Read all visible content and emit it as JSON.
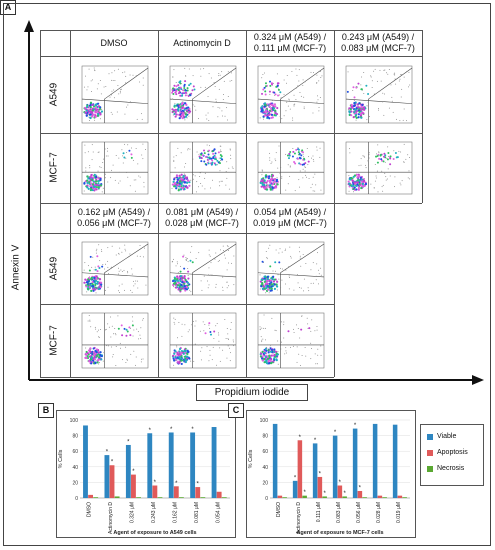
{
  "panel_a": {
    "label": "A",
    "top_headers": [
      "DMSO",
      "Actinomycin D",
      "0.324 μM (A549) / 0.111 μM (MCF-7)",
      "0.243 μM (A549) / 0.083 μM (MCF-7)"
    ],
    "bottom_headers": [
      "0.162 μM (A549) / 0.056 μM (MCF-7)",
      "0.081 μM (A549) / 0.028 μM (MCF-7)",
      "0.054 μM (A549) / 0.019 μM (MCF-7)"
    ],
    "row_labels": [
      "A549",
      "MCF-7",
      "A549",
      "MCF-7"
    ],
    "y_axis_label": "Annexin V",
    "x_axis_label": "Propidium iodide"
  },
  "legend": {
    "items": [
      {
        "label": "Viable",
        "color": "#2e86c1"
      },
      {
        "label": "Apoptosis",
        "color": "#e05a5a"
      },
      {
        "label": "Necrosis",
        "color": "#5aa832"
      }
    ]
  },
  "chart_data": [
    {
      "panel": "B",
      "type": "bar",
      "ylabel": "% Cells",
      "xlabel": "Agent of exposure to A549 cells",
      "ylim": [
        0,
        100
      ],
      "yticks": [
        0,
        20,
        40,
        60,
        80,
        100
      ],
      "categories": [
        "DMSO",
        "Actinomycin D",
        "0.324 μM",
        "0.243 μM",
        "0.162 μM",
        "0.081 μM",
        "0.054 μM"
      ],
      "series": [
        {
          "name": "Viable",
          "values": [
            93,
            55,
            68,
            83,
            84,
            84,
            91
          ]
        },
        {
          "name": "Apoptosis",
          "values": [
            4,
            42,
            30,
            16,
            15,
            14,
            8
          ]
        },
        {
          "name": "Necrosis",
          "values": [
            1,
            2,
            1,
            1,
            1,
            1,
            1
          ]
        }
      ],
      "significance": {
        "Viable": [
          false,
          true,
          true,
          true,
          true,
          true,
          false
        ],
        "Apoptosis": [
          false,
          true,
          true,
          true,
          true,
          true,
          false
        ],
        "Necrosis": [
          false,
          false,
          false,
          false,
          false,
          false,
          false
        ]
      },
      "star": "*"
    },
    {
      "panel": "C",
      "type": "bar",
      "ylabel": "% Cells",
      "xlabel": "Agent of exposure to MCF-7 cells",
      "ylim": [
        0,
        100
      ],
      "yticks": [
        0,
        20,
        40,
        60,
        80,
        100
      ],
      "categories": [
        "DMSO",
        "Actinomycin D",
        "0.111 μM",
        "0.083 μM",
        "0.056 μM",
        "0.028 μM",
        "0.019 μM"
      ],
      "series": [
        {
          "name": "Viable",
          "values": [
            95,
            22,
            70,
            80,
            89,
            95,
            94
          ]
        },
        {
          "name": "Apoptosis",
          "values": [
            3,
            74,
            27,
            16,
            9,
            3,
            3
          ]
        },
        {
          "name": "Necrosis",
          "values": [
            1,
            3,
            2,
            2,
            1,
            1,
            1
          ]
        }
      ],
      "significance": {
        "Viable": [
          false,
          true,
          true,
          true,
          true,
          false,
          false
        ],
        "Apoptosis": [
          false,
          true,
          true,
          true,
          true,
          false,
          false
        ],
        "Necrosis": [
          false,
          true,
          true,
          true,
          false,
          false,
          false
        ]
      },
      "star": "*"
    }
  ]
}
